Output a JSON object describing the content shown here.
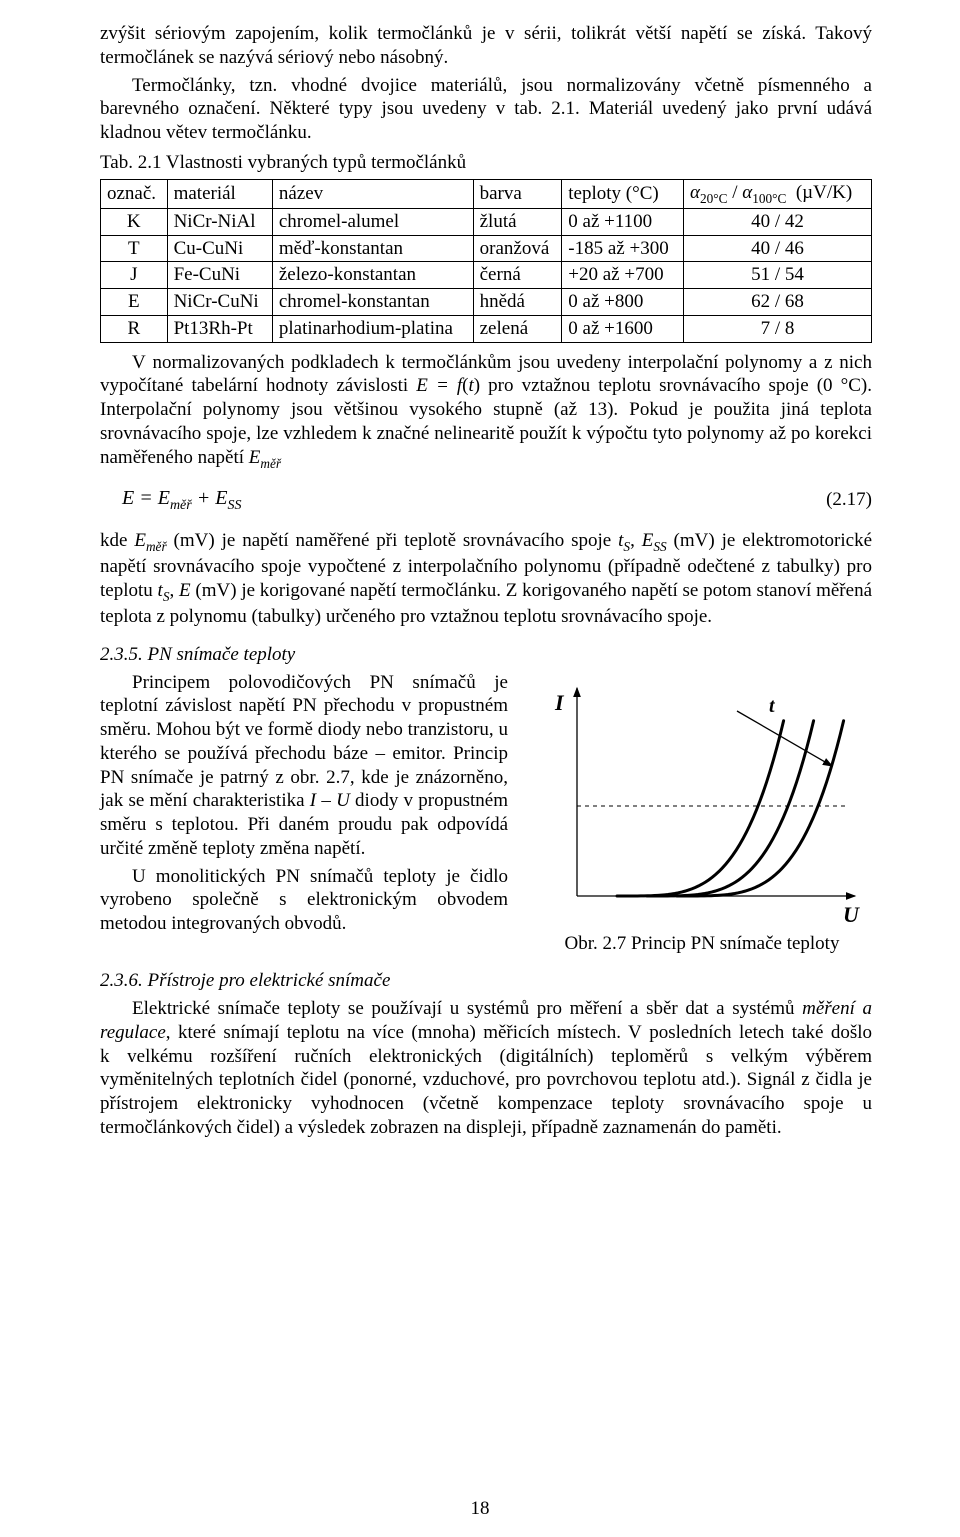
{
  "intro": {
    "p1": "zvýšit sériovým zapojením, kolik termočlánků je v sérii, tolikrát větší napětí se získá. Takový termočlánek se nazývá sériový nebo násobný.",
    "p2_prefix": "Termočlánky, tzn. vhodné dvojice materiálů, jsou normalizovány včetně písmenného a barevného označení. Některé typy jsou uvedeny v tab. 2.1. Materiál uvedený jako první udává kladnou větev termočlánku."
  },
  "table": {
    "caption": "Tab. 2.1 Vlastnosti vybraných typů termočlánků",
    "headers": {
      "c1": "označ.",
      "c2": "materiál",
      "c3": "název",
      "c4": "barva",
      "c5": "teploty (°C)",
      "c6_html": "<i>α</i><sub>20°C</sub> / <i>α</i><sub>100°C</sub>  (µV/K)"
    },
    "rows": [
      {
        "c1": "K",
        "c2": "NiCr-NiAl",
        "c3": "chromel-alumel",
        "c4": "žlutá",
        "c5": "0 až +1100",
        "c6": "40  /  42"
      },
      {
        "c1": "T",
        "c2": "Cu-CuNi",
        "c3": "měď-konstantan",
        "c4": "oranžová",
        "c5": "-185 až +300",
        "c6": "40  /  46"
      },
      {
        "c1": "J",
        "c2": "Fe-CuNi",
        "c3": "železo-konstantan",
        "c4": "černá",
        "c5": "+20 až +700",
        "c6": "51  /  54"
      },
      {
        "c1": "E",
        "c2": "NiCr-CuNi",
        "c3": "chromel-konstantan",
        "c4": "hnědá",
        "c5": "0 až +800",
        "c6": "62  /  68"
      },
      {
        "c1": "R",
        "c2": "Pt13Rh-Pt",
        "c3": "platinarhodium-platina",
        "c4": "zelená",
        "c5": "0 až +1600",
        "c6": "  7  /    8"
      }
    ]
  },
  "para_after_table_html": "V normalizovaných podkladech k termočlánkům jsou uvedeny interpolační polynomy a z nich vypočítané tabelární hodnoty závislosti <i>E = f</i>(<i>t</i>) pro vztažnou teplotu srovnávacího spoje (0 °C). Interpolační polynomy jsou většinou vysokého stupně (až 13). Pokud je použita jiná teplota srovnávacího spoje, lze vzhledem k značné nelinearitě použít k výpočtu tyto polynomy až po korekci naměřeného napětí <i>E<sub>měř</sub></i>",
  "equation": {
    "html": "<i>E</i> = <i>E</i><sub><i>měř</i></sub> + <i>E</i><sub><i>SS</i></sub>",
    "num": "(2.17)"
  },
  "para_after_eq_html": "kde <i>E<sub>měř</sub></i> (mV) je napětí naměřené při teplotě srovnávacího spoje <i>t<sub>S</sub></i>, <i>E<sub>SS</sub></i> (mV) je elektromotorické napětí srovnávacího spoje vypočtené z interpolačního polynomu (případně odečtené z tabulky) pro teplotu <i>t<sub>S</sub></i>, <i>E</i> (mV) je korigované napětí termočlánku. Z korigovaného napětí se potom stanoví měřená teplota z polynomu (tabulky) určeného pro vztažnou teplotu srovnávacího spoje.",
  "section235": {
    "title": "2.3.5. PN snímače teploty",
    "left_html": "Principem polovodičových PN snímačů je teplotní závislost napětí PN přechodu v propustném směru. Mohou být ve formě diody nebo tranzistoru, u kterého se používá přechodu báze – emitor. Princip PN snímače je patrný z obr. 2.7, kde je znázorněno, jak se mění charakteristika <i>I – U</i> diody v propustném směru s teplotou. Při daném proudu pak odpovídá určité změně teploty změna napětí.",
    "left2_html": "U monolitických PN snímačů teploty je čidlo vyrobeno společně s elektronickým obvodem metodou integrovaných obvodů."
  },
  "figure": {
    "caption": "Obr. 2.7 Princip PN snímače teploty",
    "label_I": "I",
    "label_U": "U",
    "label_t": "t",
    "colors": {
      "stroke": "#000000",
      "dash": "#000000",
      "bg": "#ffffff"
    },
    "line_width_main": 3,
    "line_width_thin": 1.3
  },
  "section236": {
    "title": "2.3.6. Přístroje pro elektrické snímače",
    "body_html": "Elektrické snímače teploty se používají u systémů pro měření a sběr dat a systémů <i>měření a regulace</i>, které snímají teplotu na více (mnoha) měřicích místech. V posledních letech také došlo k velkému rozšíření ručních elektronických (digitálních) teploměrů s velkým výběrem vyměnitelných teplotních čidel (ponorné, vzduchové, pro povrchovou teplotu atd.). Signál z čidla je přístrojem elektronicky vyhodnocen (včetně kompenzace teploty srovnávacího spoje u termočlánkových čidel) a výsledek zobrazen na displeji, případně zaznamenán do paměti."
  },
  "page_number": "18"
}
